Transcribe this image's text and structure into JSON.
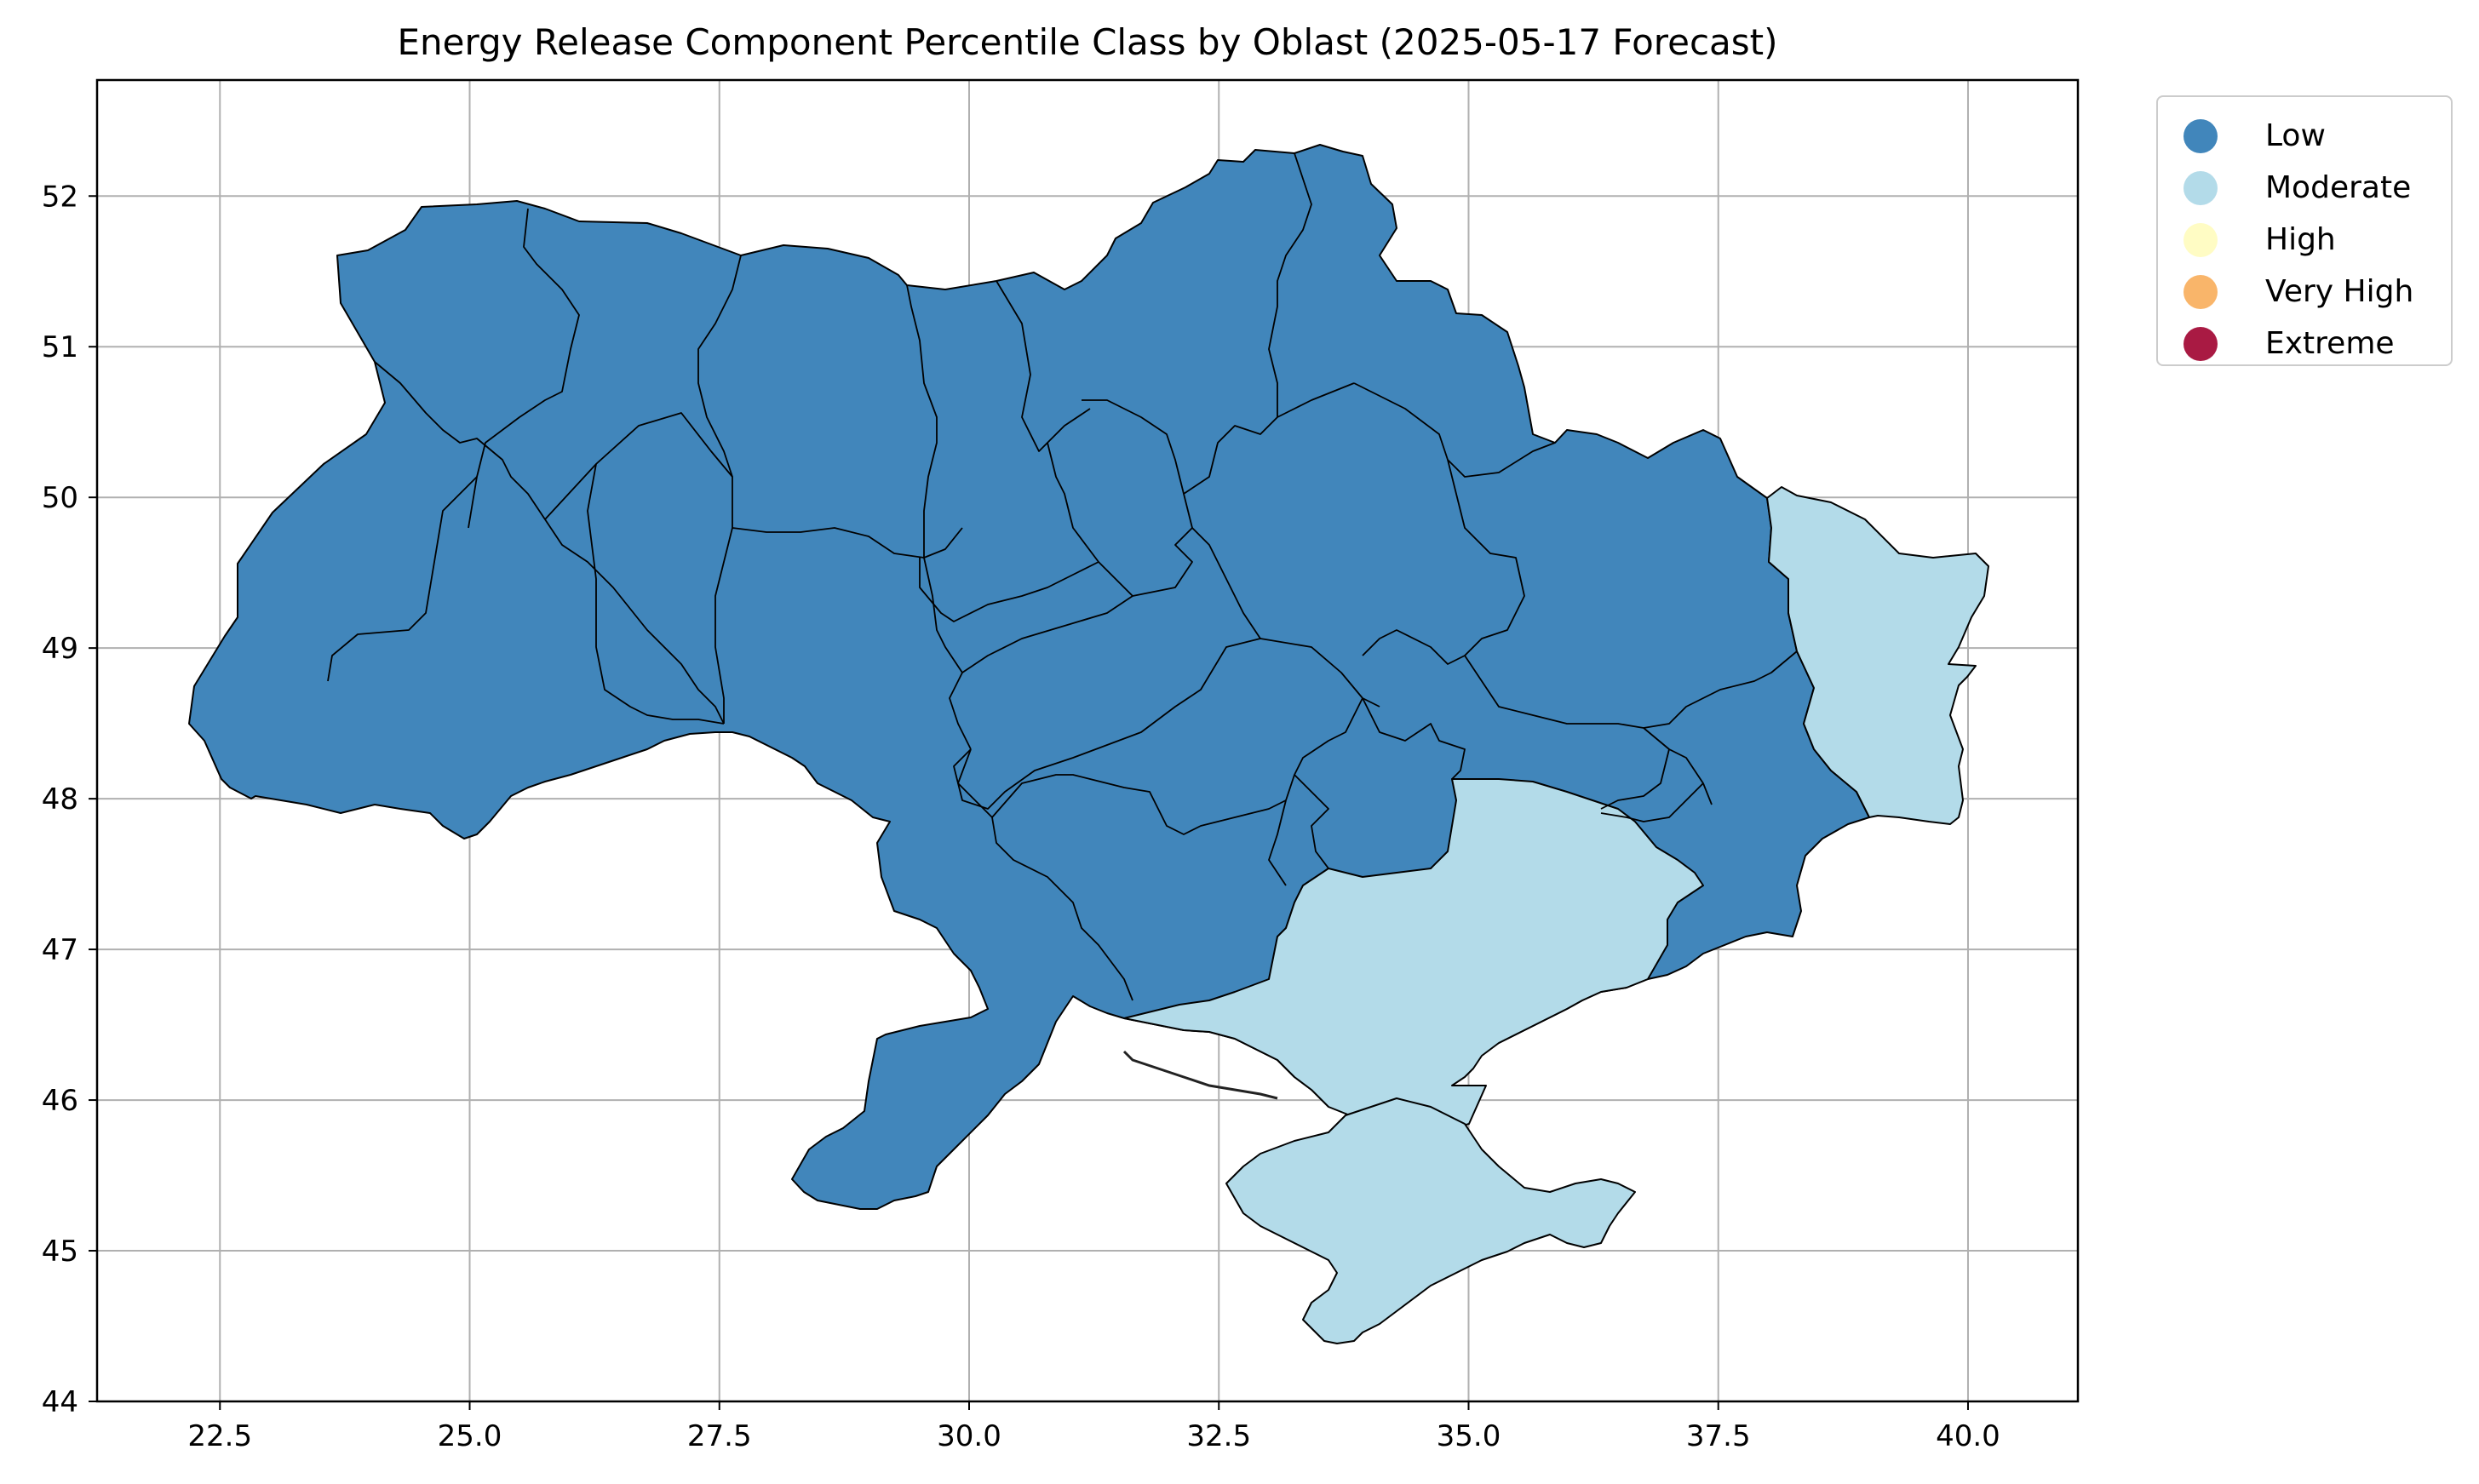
{
  "title": "Energy Release Component Percentile Class by Oblast (2025-05-17 Forecast)",
  "axes": {
    "x_ticks": [
      "22.5",
      "25.0",
      "27.5",
      "30.0",
      "32.5",
      "35.0",
      "37.5",
      "40.0"
    ],
    "y_ticks": [
      "44",
      "45",
      "46",
      "47",
      "48",
      "49",
      "50",
      "51",
      "52"
    ],
    "xlim": [
      21.27,
      41.1
    ],
    "ylim": [
      44.0,
      52.77
    ],
    "grid": true
  },
  "legend": {
    "placement": "outside upper right",
    "items": [
      {
        "label": "Low",
        "color": "#4186bb"
      },
      {
        "label": "Moderate",
        "color": "#b3dbe9"
      },
      {
        "label": "High",
        "color": "#fffcc4"
      },
      {
        "label": "Very High",
        "color": "#f9b56a"
      },
      {
        "label": "Extreme",
        "color": "#a91a43"
      }
    ]
  },
  "map": {
    "country": "Ukraine",
    "date": "2025-05-17",
    "border_color": "#000000",
    "regions_low": "all other oblasts",
    "regions_moderate": [
      "Luhansk",
      "Zaporizhzhia",
      "Kherson",
      "Crimea"
    ]
  }
}
